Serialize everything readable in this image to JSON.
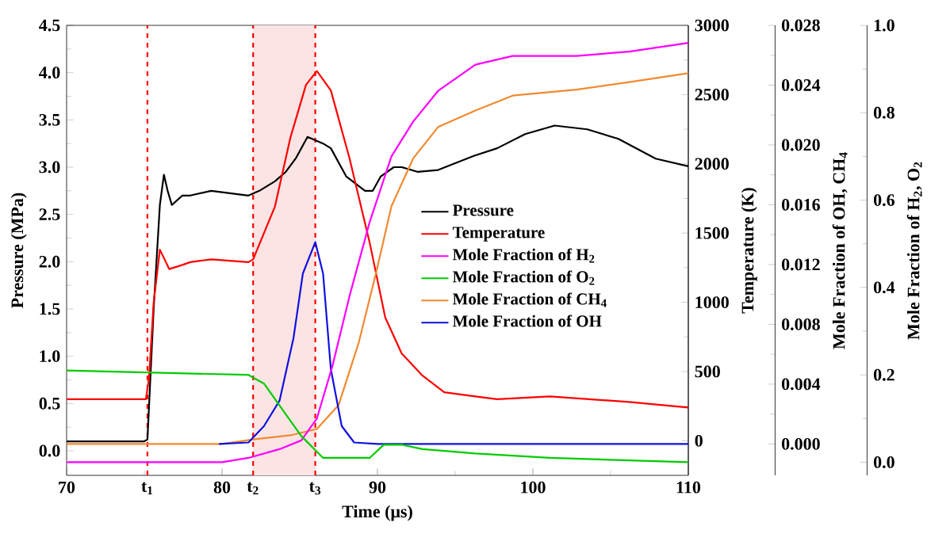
{
  "chart_data": [
    {
      "type": "line",
      "xlabel": "Time (μs)",
      "ylabel": "Pressure (MPa)",
      "y2label": "Temperature (K)",
      "y3label": "Mole Fraction of OH, CH$_{4}$",
      "xlim": [
        70,
        110
      ],
      "xticks": [
        70,
        80,
        90,
        100,
        110
      ],
      "ylim": [
        -0.26,
        4.5
      ],
      "yticks": [
        {
          "value": 0,
          "label": "0.0"
        },
        0.5,
        {
          "value": 1,
          "label": "1.0"
        },
        1.5,
        {
          "value": 2,
          "label": "2.0"
        },
        2.5,
        {
          "value": 3,
          "label": "3.0"
        },
        3.5,
        {
          "value": 4,
          "label": "4.0"
        },
        4.5
      ],
      "y2lim": [
        -250,
        3000
      ],
      "y2ticks": [
        0,
        500,
        1000,
        1500,
        2000,
        2500,
        3000
      ],
      "y3lim": [
        -0.0021,
        0.028
      ],
      "y3ticks": [
        {
          "value": 0,
          "label": "0.000"
        },
        0.004,
        0.008,
        0.012,
        0.016,
        {
          "value": 0.02,
          "label": "0.020"
        },
        0.024,
        0.028
      ],
      "legend": "right",
      "bands": [
        {
          "axis": "x",
          "from": 82.0,
          "to": 86.0,
          "color": "#fce4e4"
        }
      ],
      "ref_lines": [
        {
          "axis": "x",
          "value": 75.2,
          "label": "t$_{1}$",
          "color": "#ff0000",
          "line_style": "dashed"
        },
        {
          "axis": "x",
          "value": 82.0,
          "label": "t$_{2}$",
          "color": "#ff0000",
          "line_style": "dashed"
        },
        {
          "axis": "x",
          "value": 86.0,
          "label": "t$_{3}$",
          "color": "#ff0000",
          "line_style": "dashed"
        }
      ],
      "series": [
        {
          "name": "Pressure",
          "color": "#000000",
          "axis": "y",
          "x": [
            70,
            75.0,
            75.2,
            75.6,
            76.0,
            76.26,
            76.5,
            76.77,
            77.45,
            77.96,
            79.3,
            80.7,
            81.7,
            82.4,
            83.4,
            84.1,
            84.77,
            85.5,
            86.5,
            87.0,
            88.0,
            89.2,
            89.7,
            90.2,
            91.05,
            91.56,
            92.6,
            93.9,
            96.2,
            97.7,
            99.5,
            101.4,
            103.5,
            105.5,
            107.9,
            110
          ],
          "values": [
            0.1,
            0.1,
            0.12,
            1.5,
            2.6,
            2.92,
            2.75,
            2.6,
            2.7,
            2.7,
            2.75,
            2.72,
            2.7,
            2.75,
            2.85,
            2.95,
            3.1,
            3.32,
            3.25,
            3.2,
            2.9,
            2.75,
            2.75,
            2.9,
            3.0,
            3.0,
            2.95,
            2.97,
            3.12,
            3.2,
            3.35,
            3.44,
            3.4,
            3.3,
            3.09,
            3.01
          ]
        },
        {
          "name": "Temperature",
          "color": "#ff0000",
          "axis": "y2",
          "x": [
            70,
            75.1,
            75.3,
            75.6,
            76.0,
            76.6,
            77.45,
            77.96,
            79.3,
            81.7,
            82.0,
            83.4,
            84.4,
            85.4,
            86.1,
            87.0,
            88.2,
            89.5,
            90.5,
            91.56,
            92.9,
            94.3,
            96.3,
            97.7,
            101.1,
            106.2,
            110
          ],
          "values": [
            300,
            300,
            450,
            1000,
            1380,
            1240,
            1270,
            1290,
            1310,
            1290,
            1310,
            1690,
            2190,
            2570,
            2670,
            2530,
            2040,
            1430,
            890,
            630,
            470,
            350,
            320,
            300,
            320,
            280,
            240
          ]
        },
        {
          "name": "Mole Fraction of CH$_{4}$",
          "color": "#f08a30",
          "axis": "y3",
          "x": [
            70,
            80.0,
            82.0,
            84.5,
            86.1,
            87.5,
            88.8,
            89.9,
            90.9,
            92.3,
            93.9,
            96.3,
            98.7,
            102.8,
            106.2,
            110
          ],
          "values": [
            0.0,
            0.0,
            0.0003,
            0.0006,
            0.001,
            0.0026,
            0.0068,
            0.0114,
            0.0159,
            0.0191,
            0.0212,
            0.0223,
            0.0233,
            0.0237,
            0.0242,
            0.0248
          ]
        },
        {
          "name": "Mole Fraction of OH",
          "color": "#1010e0",
          "axis": "y3",
          "x": [
            79.8,
            81.7,
            82.7,
            83.7,
            84.6,
            85.2,
            86.0,
            86.5,
            87.0,
            87.7,
            88.5,
            90,
            110
          ],
          "values": [
            0.0,
            0.0001,
            0.0012,
            0.0029,
            0.0071,
            0.0114,
            0.0135,
            0.0114,
            0.005,
            0.0012,
            0.0001,
            0.0,
            0.0
          ]
        }
      ]
    },
    {
      "type": "line",
      "ylabel": "Mole Fraction of H$_{2}$, O$_{2}$",
      "xlim": [
        70,
        121.5
      ],
      "xticks": [
        70,
        80,
        90,
        100,
        110
      ],
      "ylim": [
        -0.03,
        1.0
      ],
      "yticks": [
        {
          "value": 0,
          "label": "0.0"
        },
        0.2,
        0.4,
        0.6,
        0.8,
        {
          "value": 1,
          "label": "1.0"
        }
      ],
      "tick_labels": "y",
      "legend": "right",
      "series": [
        {
          "name": "Mole Fraction of H$_{2}$",
          "color": "#ff00ff",
          "x": [
            70,
            80.0,
            81.7,
            83.7,
            85.1,
            86.1,
            87.1,
            88.2,
            89.5,
            90.9,
            92.3,
            93.9,
            96.3,
            98.7,
            102.8,
            106.2,
            110
          ],
          "values": [
            0.0,
            0.0,
            0.01,
            0.03,
            0.05,
            0.1,
            0.22,
            0.38,
            0.55,
            0.7,
            0.78,
            0.85,
            0.91,
            0.93,
            0.93,
            0.94,
            0.96
          ]
        },
        {
          "name": "Mole Fraction of O$_{2}$",
          "color": "#00cc00",
          "x": [
            70,
            81.7,
            82.7,
            84.1,
            85.1,
            86.5,
            87.8,
            89.5,
            90.4,
            91.6,
            92.9,
            96.3,
            101.1,
            110
          ],
          "values": [
            0.21,
            0.2,
            0.18,
            0.11,
            0.06,
            0.01,
            0.01,
            0.01,
            0.04,
            0.04,
            0.03,
            0.02,
            0.01,
            0.0
          ]
        }
      ]
    }
  ]
}
